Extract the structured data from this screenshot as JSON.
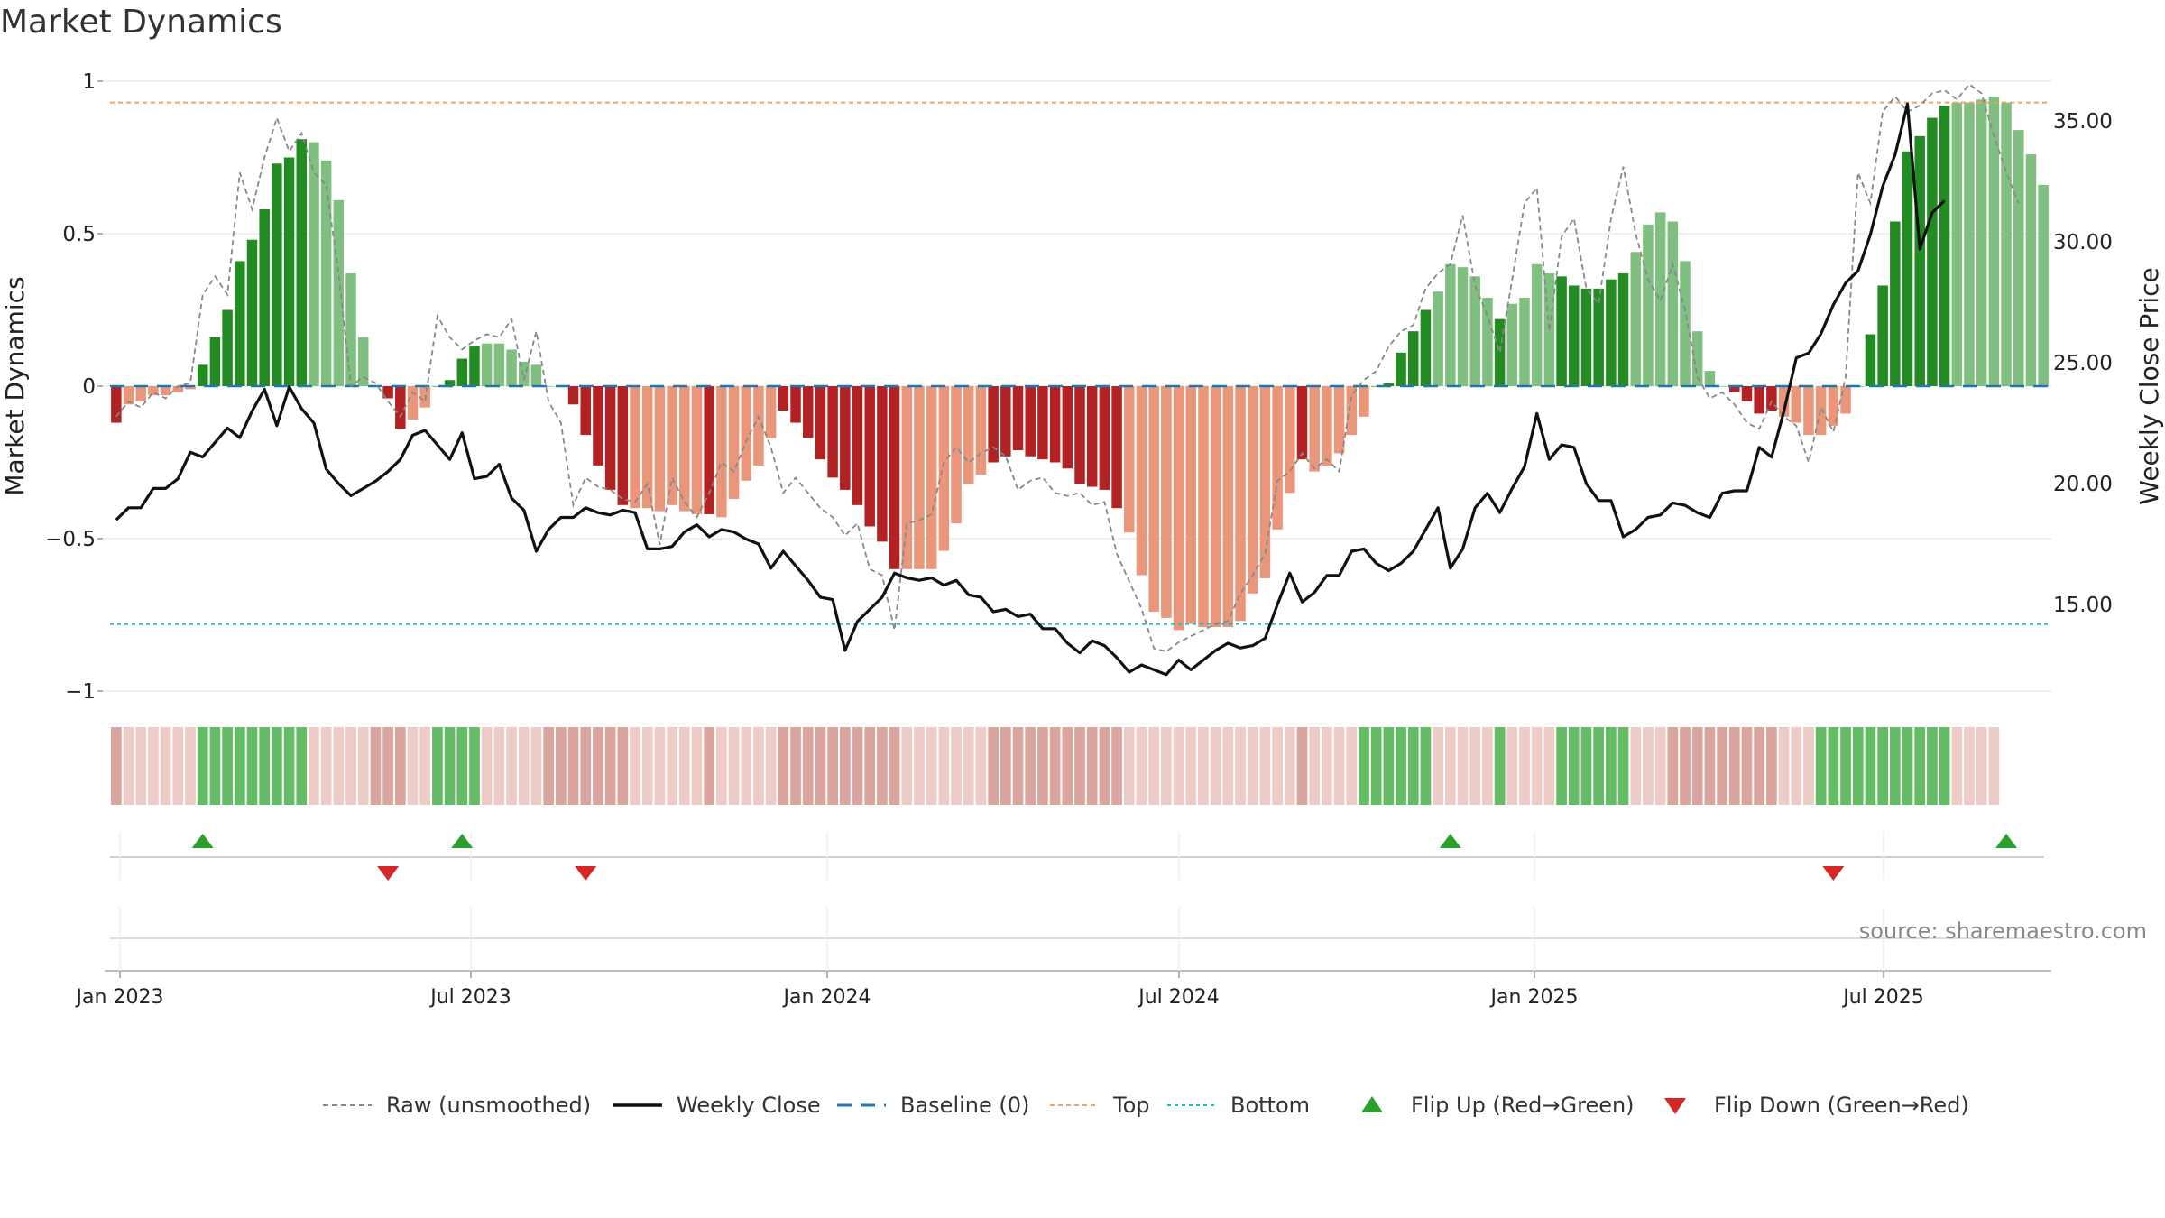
{
  "title": "Market Dynamics",
  "source": "source: sharemaestro.com",
  "chart_data": {
    "type": "bar",
    "title": "Market Dynamics",
    "ylabel": "Market Dynamics",
    "y2label": "Weekly Close Price",
    "ylim": [
      -1.0,
      1.0
    ],
    "y2lim": [
      11.0,
      37.0
    ],
    "y_ticks": [
      {
        "v": 1,
        "label": "1"
      },
      {
        "v": 0.5,
        "label": "0.5"
      },
      {
        "v": 0,
        "label": "0"
      },
      {
        "v": -0.5,
        "label": "−0.5"
      },
      {
        "v": -1,
        "label": "−1"
      }
    ],
    "y2_ticks": [
      {
        "v": 35,
        "label": "35.00"
      },
      {
        "v": 30,
        "label": "30.00"
      },
      {
        "v": 25,
        "label": "25.00"
      },
      {
        "v": 20,
        "label": "20.00"
      },
      {
        "v": 15,
        "label": "15.00"
      }
    ],
    "x_ticks": [
      "Jan 2023",
      "Jul 2023",
      "Jan 2024",
      "Jul 2024",
      "Jan 2025",
      "Jul 2025"
    ],
    "top_level": 0.93,
    "bottom_level": -0.78,
    "baseline": 0,
    "grid": true,
    "legend_position": "bottom",
    "colors": {
      "strong_green": "#228b22",
      "light_green": "#7fbf7f",
      "strong_red": "#b22222",
      "light_red": "#e9967a",
      "close_line": "#111111",
      "raw_line": "#888888",
      "baseline": "#1f77b4",
      "top": "#f4a261",
      "bottom": "#17becf",
      "flip_up": "#2ca02c",
      "flip_down": "#d62728"
    },
    "series": [
      {
        "name": "Market Dynamics",
        "type": "bar",
        "values": [
          -0.12,
          -0.06,
          -0.05,
          -0.03,
          -0.03,
          -0.02,
          -0.01,
          0.07,
          0.16,
          0.25,
          0.41,
          0.48,
          0.58,
          0.73,
          0.75,
          0.81,
          0.8,
          0.74,
          0.61,
          0.37,
          0.16,
          0.0,
          -0.04,
          -0.14,
          -0.11,
          -0.07,
          0.0,
          0.02,
          0.09,
          0.13,
          0.14,
          0.14,
          0.12,
          0.08,
          0.07,
          0.0,
          0.0,
          -0.06,
          -0.16,
          -0.26,
          -0.34,
          -0.39,
          -0.4,
          -0.4,
          -0.41,
          -0.39,
          -0.41,
          -0.42,
          -0.42,
          -0.43,
          -0.37,
          -0.31,
          -0.26,
          -0.17,
          -0.08,
          -0.12,
          -0.17,
          -0.24,
          -0.3,
          -0.34,
          -0.39,
          -0.46,
          -0.51,
          -0.6,
          -0.6,
          -0.6,
          -0.6,
          -0.54,
          -0.45,
          -0.32,
          -0.29,
          -0.25,
          -0.23,
          -0.21,
          -0.23,
          -0.24,
          -0.25,
          -0.27,
          -0.32,
          -0.33,
          -0.34,
          -0.4,
          -0.48,
          -0.62,
          -0.74,
          -0.76,
          -0.8,
          -0.78,
          -0.79,
          -0.79,
          -0.79,
          -0.77,
          -0.68,
          -0.63,
          -0.47,
          -0.35,
          -0.24,
          -0.28,
          -0.26,
          -0.22,
          -0.16,
          -0.1,
          0.0,
          0.01,
          0.11,
          0.18,
          0.25,
          0.31,
          0.4,
          0.39,
          0.36,
          0.29,
          0.22,
          0.27,
          0.29,
          0.4,
          0.37,
          0.36,
          0.33,
          0.32,
          0.32,
          0.35,
          0.37,
          0.44,
          0.53,
          0.57,
          0.54,
          0.41,
          0.18,
          0.05,
          0.0,
          -0.02,
          -0.05,
          -0.09,
          -0.08,
          -0.1,
          -0.12,
          -0.16,
          -0.16,
          -0.13,
          -0.09,
          0.0,
          0.17,
          0.33,
          0.54,
          0.77,
          0.82,
          0.88,
          0.92,
          0.93,
          0.93,
          0.94,
          0.95,
          0.93,
          0.84,
          0.76,
          0.66
        ],
        "states": "RLLLLLLGGGGGGGGGLLLLLRRRLLGGGGLLLLLRRRRRRRLLLLLLRLLLLLRRRRRRRRRRLLLLLLLRRRRRRRRRRRLLLLLLLLLLLLLLRLLLLGGGGGGLLLLLGLLLLGGGGGGLLLRRRRRRRRRLLLGGGGGGGGGGGLLLL"
      },
      {
        "name": "Raw (unsmoothed)",
        "type": "line",
        "values": [
          -0.1,
          -0.05,
          -0.07,
          -0.02,
          -0.04,
          0.0,
          0.01,
          0.3,
          0.36,
          0.3,
          0.7,
          0.58,
          0.75,
          0.88,
          0.77,
          0.83,
          0.7,
          0.66,
          0.37,
          0.0,
          0.03,
          0.01,
          -0.05,
          -0.1,
          -0.02,
          -0.05,
          0.23,
          0.16,
          0.12,
          0.15,
          0.17,
          0.16,
          0.22,
          0.02,
          0.18,
          -0.05,
          -0.12,
          -0.39,
          -0.3,
          -0.33,
          -0.34,
          -0.37,
          -0.38,
          -0.32,
          -0.52,
          -0.3,
          -0.38,
          -0.43,
          -0.35,
          -0.25,
          -0.28,
          -0.18,
          -0.1,
          -0.2,
          -0.35,
          -0.3,
          -0.35,
          -0.4,
          -0.43,
          -0.49,
          -0.45,
          -0.6,
          -0.62,
          -0.8,
          -0.45,
          -0.44,
          -0.42,
          -0.25,
          -0.2,
          -0.25,
          -0.22,
          -0.2,
          -0.23,
          -0.34,
          -0.31,
          -0.3,
          -0.35,
          -0.36,
          -0.35,
          -0.39,
          -0.38,
          -0.55,
          -0.64,
          -0.73,
          -0.86,
          -0.87,
          -0.84,
          -0.82,
          -0.8,
          -0.78,
          -0.77,
          -0.68,
          -0.62,
          -0.55,
          -0.31,
          -0.28,
          -0.22,
          -0.27,
          -0.24,
          -0.28,
          -0.03,
          0.02,
          0.05,
          0.13,
          0.18,
          0.2,
          0.32,
          0.37,
          0.4,
          0.56,
          0.33,
          0.23,
          0.11,
          0.35,
          0.6,
          0.65,
          0.18,
          0.49,
          0.55,
          0.32,
          0.27,
          0.55,
          0.72,
          0.5,
          0.35,
          0.28,
          0.4,
          0.25,
          0.03,
          -0.04,
          -0.02,
          -0.06,
          -0.12,
          -0.14,
          -0.05,
          -0.1,
          -0.13,
          -0.25,
          -0.07,
          -0.15,
          0.03,
          0.7,
          0.6,
          0.9,
          0.95,
          0.9,
          0.92,
          0.96,
          0.97,
          0.94,
          0.99,
          0.96,
          0.82,
          0.7,
          0.6
        ]
      },
      {
        "name": "Weekly Close",
        "type": "line",
        "axis": "right",
        "values": [
          18.5,
          19.0,
          19.0,
          19.8,
          19.8,
          20.2,
          21.3,
          21.1,
          21.7,
          22.3,
          21.9,
          23.0,
          23.9,
          22.4,
          24.0,
          23.1,
          22.5,
          20.6,
          20.0,
          19.5,
          19.8,
          20.1,
          20.5,
          21.0,
          22.0,
          22.2,
          21.6,
          21.0,
          22.1,
          20.2,
          20.3,
          20.8,
          19.4,
          18.9,
          17.2,
          18.1,
          18.6,
          18.6,
          19.0,
          18.8,
          18.7,
          18.9,
          18.8,
          17.3,
          17.3,
          17.4,
          18.0,
          18.3,
          17.8,
          18.1,
          18.0,
          17.7,
          17.5,
          16.5,
          17.2,
          16.6,
          16.0,
          15.3,
          15.2,
          13.1,
          14.3,
          14.8,
          15.3,
          16.3,
          16.1,
          16.0,
          16.1,
          15.8,
          16.0,
          15.4,
          15.3,
          14.7,
          14.8,
          14.5,
          14.6,
          14.0,
          14.0,
          13.4,
          13.0,
          13.5,
          13.3,
          12.8,
          12.2,
          12.5,
          12.3,
          12.1,
          12.7,
          12.3,
          12.7,
          13.1,
          13.4,
          13.2,
          13.3,
          13.6,
          15.0,
          16.3,
          15.1,
          15.5,
          16.2,
          16.2,
          17.2,
          17.3,
          16.7,
          16.4,
          16.7,
          17.2,
          18.1,
          19.0,
          16.5,
          17.3,
          19.0,
          19.6,
          18.8,
          19.8,
          20.7,
          22.9,
          21.0,
          21.6,
          21.5,
          20.0,
          19.3,
          19.3,
          17.8,
          18.1,
          18.6,
          18.7,
          19.2,
          19.1,
          18.8,
          18.6,
          19.6,
          19.7,
          19.7,
          21.5,
          21.1,
          23.0,
          25.2,
          25.4,
          26.2,
          27.4,
          28.3,
          28.8,
          30.3,
          32.3,
          33.6,
          35.7,
          29.7,
          31.2,
          31.7
        ]
      }
    ],
    "flips": [
      {
        "name": "Flip Up (Red→Green)",
        "type": "up",
        "weeks": [
          7,
          28,
          108,
          153
        ]
      },
      {
        "name": "Flip Down (Green→Red)",
        "type": "down",
        "weeks": [
          22,
          38,
          139
        ]
      }
    ]
  },
  "legend": [
    {
      "key": "raw",
      "label": "Raw (unsmoothed)"
    },
    {
      "key": "close",
      "label": "Weekly Close"
    },
    {
      "key": "baseline",
      "label": "Baseline (0)"
    },
    {
      "key": "top",
      "label": "Top"
    },
    {
      "key": "bottom",
      "label": "Bottom"
    },
    {
      "key": "flip_up",
      "label": "Flip Up (Red→Green)"
    },
    {
      "key": "flip_down",
      "label": "Flip Down (Green→Red)"
    }
  ]
}
